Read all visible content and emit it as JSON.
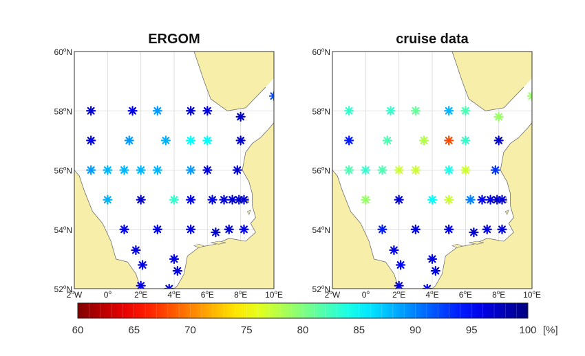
{
  "panels": [
    {
      "title": "ERGOM"
    },
    {
      "title": "cruise data"
    }
  ],
  "axes": {
    "lat_ticks": [
      "52",
      "54",
      "56",
      "58",
      "60"
    ],
    "lat_suffix": "N",
    "lon_ticks": [
      "2",
      "0",
      "2",
      "4",
      "6",
      "8",
      "10"
    ],
    "lon_suffix": [
      "W",
      "",
      "E",
      "E",
      "E",
      "E",
      "E"
    ],
    "degree": "o"
  },
  "colorbar": {
    "min": 60,
    "max": 100,
    "ticks": [
      "60",
      "65",
      "70",
      "75",
      "80",
      "85",
      "90",
      "95",
      "100"
    ],
    "unit": "[%]"
  },
  "colors": {
    "land": "#f7eeaa",
    "coast": "#6e6e6e",
    "grid": "#d8d8d8"
  },
  "chart_data": [
    {
      "type": "scatter",
      "title": "ERGOM",
      "xlim": [
        -2,
        10
      ],
      "ylim": [
        52,
        60
      ],
      "points": [
        {
          "lon": -1,
          "lat": 58,
          "v": 97
        },
        {
          "lon": 1.5,
          "lat": 58,
          "v": 96
        },
        {
          "lon": 3,
          "lat": 58,
          "v": 89
        },
        {
          "lon": 5,
          "lat": 58,
          "v": 97
        },
        {
          "lon": 6,
          "lat": 58,
          "v": 96
        },
        {
          "lon": 8,
          "lat": 57.8,
          "v": 97
        },
        {
          "lon": 10,
          "lat": 58.5,
          "v": 92
        },
        {
          "lon": -1,
          "lat": 57,
          "v": 96
        },
        {
          "lon": 1.3,
          "lat": 57,
          "v": 89
        },
        {
          "lon": 3.5,
          "lat": 57,
          "v": 88
        },
        {
          "lon": 5,
          "lat": 57,
          "v": 85
        },
        {
          "lon": 6,
          "lat": 57,
          "v": 85
        },
        {
          "lon": 8,
          "lat": 57,
          "v": 97
        },
        {
          "lon": -1,
          "lat": 56,
          "v": 89
        },
        {
          "lon": 0,
          "lat": 56,
          "v": 88
        },
        {
          "lon": 1,
          "lat": 56,
          "v": 88
        },
        {
          "lon": 2,
          "lat": 56,
          "v": 88
        },
        {
          "lon": 3,
          "lat": 56,
          "v": 88
        },
        {
          "lon": 5,
          "lat": 56,
          "v": 89
        },
        {
          "lon": 6,
          "lat": 56,
          "v": 96
        },
        {
          "lon": 7.8,
          "lat": 56,
          "v": 97
        },
        {
          "lon": 0,
          "lat": 55,
          "v": 88
        },
        {
          "lon": 2,
          "lat": 55,
          "v": 97
        },
        {
          "lon": 4,
          "lat": 55,
          "v": 83
        },
        {
          "lon": 5,
          "lat": 55,
          "v": 96
        },
        {
          "lon": 6.3,
          "lat": 55,
          "v": 96
        },
        {
          "lon": 7,
          "lat": 55,
          "v": 97
        },
        {
          "lon": 7.5,
          "lat": 55,
          "v": 97
        },
        {
          "lon": 7.9,
          "lat": 55,
          "v": 97
        },
        {
          "lon": 8.2,
          "lat": 55,
          "v": 97
        },
        {
          "lon": 1,
          "lat": 54,
          "v": 96
        },
        {
          "lon": 3,
          "lat": 54,
          "v": 96
        },
        {
          "lon": 5,
          "lat": 54,
          "v": 96
        },
        {
          "lon": 6.5,
          "lat": 53.9,
          "v": 97
        },
        {
          "lon": 7.3,
          "lat": 54,
          "v": 97
        },
        {
          "lon": 8.2,
          "lat": 54,
          "v": 96
        },
        {
          "lon": 1.7,
          "lat": 53.3,
          "v": 96
        },
        {
          "lon": 2.1,
          "lat": 52.8,
          "v": 96
        },
        {
          "lon": 4,
          "lat": 53,
          "v": 96
        },
        {
          "lon": 4.2,
          "lat": 52.6,
          "v": 96
        },
        {
          "lon": 2,
          "lat": 52.1,
          "v": 96
        },
        {
          "lon": 3.7,
          "lat": 52,
          "v": 96
        }
      ]
    },
    {
      "type": "scatter",
      "title": "cruise data",
      "xlim": [
        -2,
        10
      ],
      "ylim": [
        52,
        60
      ],
      "points": [
        {
          "lon": -1,
          "lat": 58,
          "v": 83
        },
        {
          "lon": 1.5,
          "lat": 58,
          "v": 83
        },
        {
          "lon": 3,
          "lat": 58,
          "v": 81
        },
        {
          "lon": 5,
          "lat": 58,
          "v": 88
        },
        {
          "lon": 6,
          "lat": 58,
          "v": 82
        },
        {
          "lon": 8,
          "lat": 57.8,
          "v": 79
        },
        {
          "lon": 10,
          "lat": 58.5,
          "v": 79
        },
        {
          "lon": -1,
          "lat": 57,
          "v": 94
        },
        {
          "lon": 1.3,
          "lat": 57,
          "v": 82
        },
        {
          "lon": 3.5,
          "lat": 57,
          "v": 78
        },
        {
          "lon": 5,
          "lat": 57,
          "v": 68
        },
        {
          "lon": 6,
          "lat": 57,
          "v": 83
        },
        {
          "lon": 8,
          "lat": 57,
          "v": 97
        },
        {
          "lon": -1,
          "lat": 56,
          "v": 82
        },
        {
          "lon": 0,
          "lat": 56,
          "v": 83
        },
        {
          "lon": 1,
          "lat": 56,
          "v": 82
        },
        {
          "lon": 2,
          "lat": 56,
          "v": 77
        },
        {
          "lon": 3,
          "lat": 56,
          "v": 77
        },
        {
          "lon": 5,
          "lat": 56,
          "v": 84
        },
        {
          "lon": 6,
          "lat": 56,
          "v": 77
        },
        {
          "lon": 7.8,
          "lat": 56,
          "v": 93
        },
        {
          "lon": 0,
          "lat": 55,
          "v": 79
        },
        {
          "lon": 2,
          "lat": 55,
          "v": 97
        },
        {
          "lon": 4,
          "lat": 55,
          "v": 85
        },
        {
          "lon": 5,
          "lat": 55,
          "v": 77
        },
        {
          "lon": 6.3,
          "lat": 55,
          "v": 90
        },
        {
          "lon": 7,
          "lat": 55,
          "v": 95
        },
        {
          "lon": 7.5,
          "lat": 55,
          "v": 96
        },
        {
          "lon": 7.9,
          "lat": 55,
          "v": 97
        },
        {
          "lon": 8.2,
          "lat": 55,
          "v": 97
        },
        {
          "lon": 1,
          "lat": 54,
          "v": 94
        },
        {
          "lon": 3,
          "lat": 54,
          "v": 96
        },
        {
          "lon": 5,
          "lat": 54,
          "v": 96
        },
        {
          "lon": 6.5,
          "lat": 53.9,
          "v": 97
        },
        {
          "lon": 7.3,
          "lat": 54,
          "v": 96
        },
        {
          "lon": 8.2,
          "lat": 54,
          "v": 96
        },
        {
          "lon": 1.7,
          "lat": 53.3,
          "v": 96
        },
        {
          "lon": 2.1,
          "lat": 52.8,
          "v": 95
        },
        {
          "lon": 4,
          "lat": 53,
          "v": 96
        },
        {
          "lon": 4.2,
          "lat": 52.6,
          "v": 96
        },
        {
          "lon": 2,
          "lat": 52.1,
          "v": 96
        },
        {
          "lon": 3.7,
          "lat": 52,
          "v": 96
        }
      ]
    }
  ]
}
